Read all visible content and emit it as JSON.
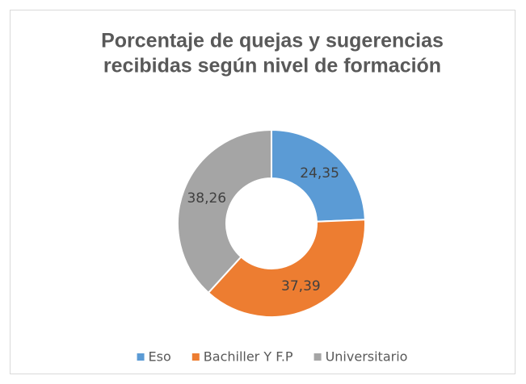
{
  "chart_data": {
    "type": "donut",
    "title": [
      "Porcentaje de quejas y sugerencias",
      "recibidas según nivel de formación"
    ],
    "categories": [
      "Eso",
      "Bachiller Y F.P",
      "Universitario"
    ],
    "values": [
      24.35,
      37.39,
      38.26
    ],
    "value_labels": [
      "24,35",
      "37,39",
      "38,26"
    ],
    "colors": [
      "#5b9bd5",
      "#ed7d31",
      "#a5a5a5"
    ],
    "legend": "bottom"
  }
}
